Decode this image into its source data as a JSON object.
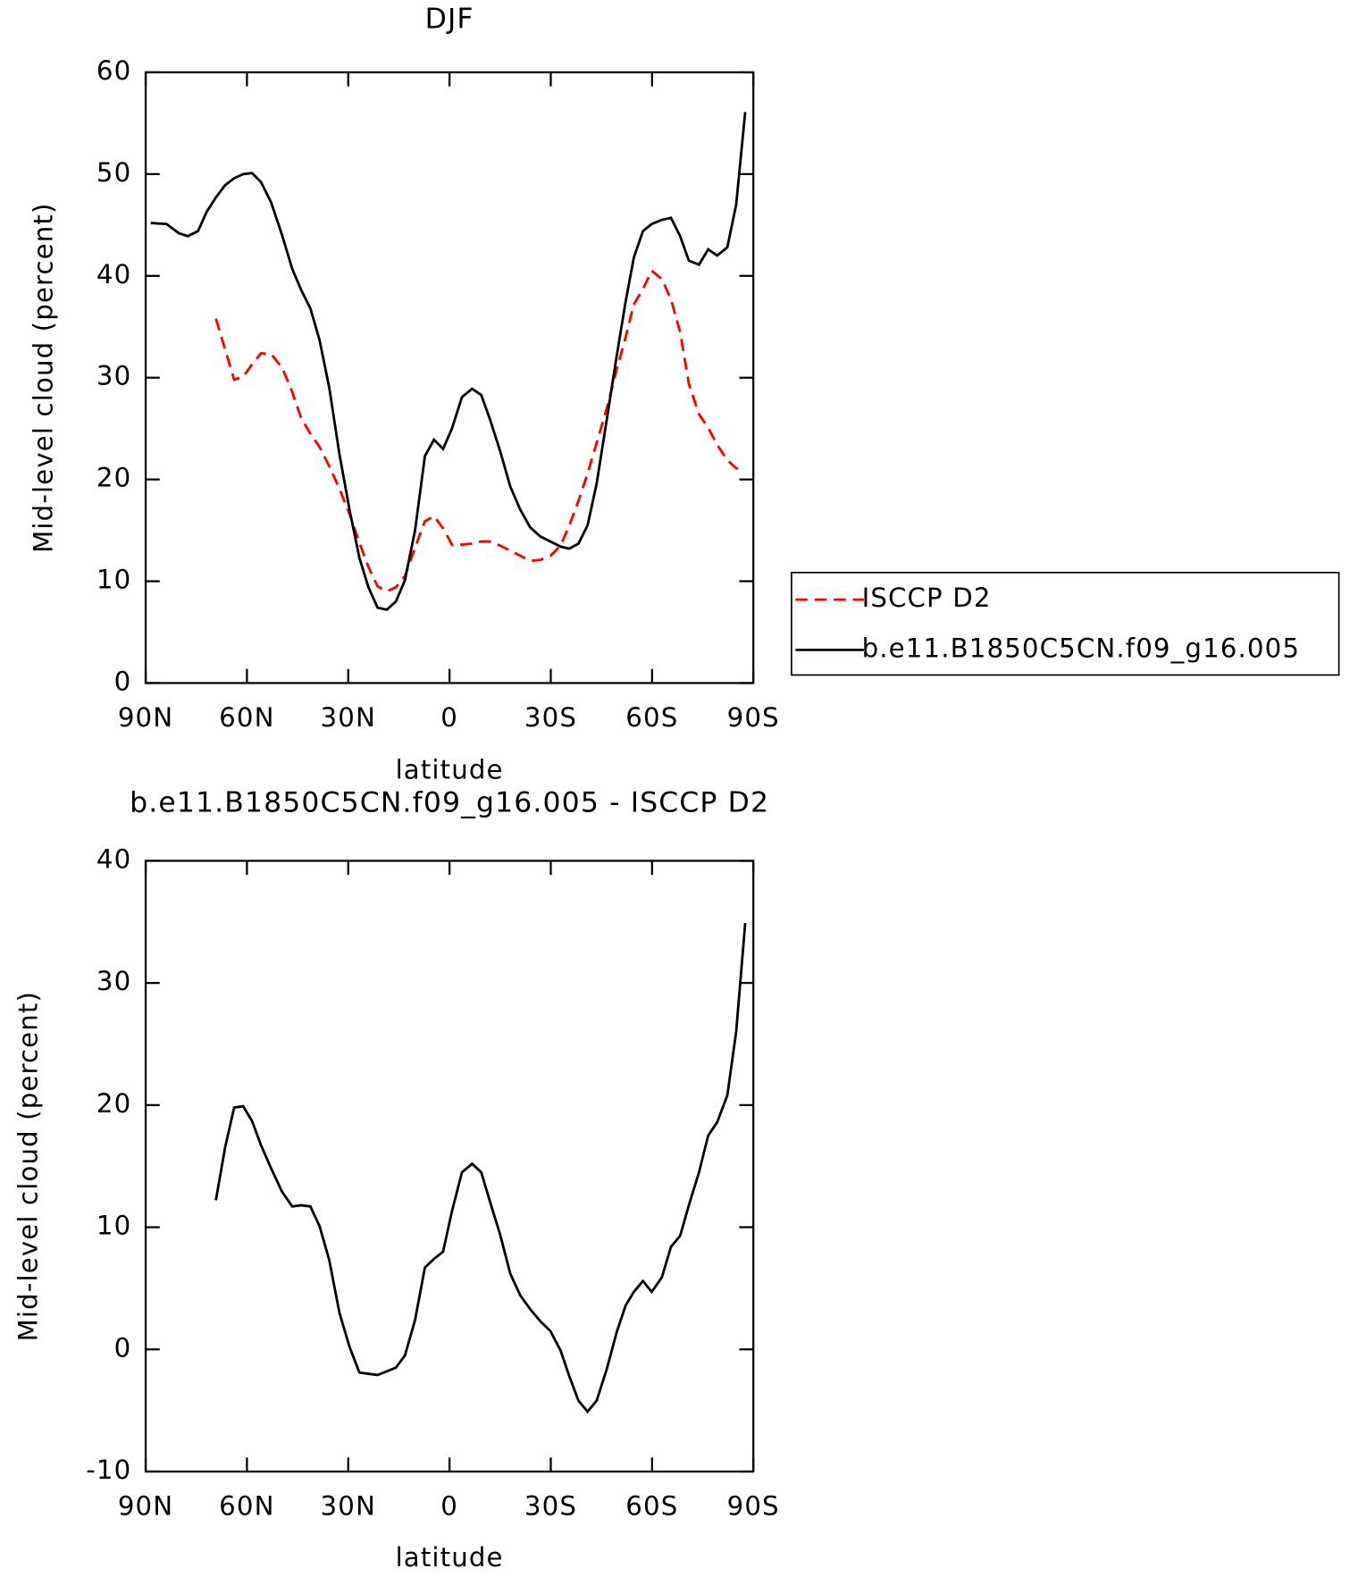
{
  "chart_data": [
    {
      "type": "line",
      "title": "DJF",
      "xlabel": "latitude",
      "ylabel": "Mid-level cloud (percent)",
      "x": [
        88.5,
        83.8,
        80.2,
        77.5,
        74.5,
        71.9,
        69.2,
        66.5,
        63.8,
        61.1,
        58.5,
        55.8,
        52.8,
        49.6,
        46.6,
        43.9,
        41.2,
        38.5,
        35.6,
        32.6,
        29.6,
        26.7,
        24.0,
        21.3,
        18.6,
        15.9,
        13.2,
        10.2,
        7.3,
        4.6,
        1.9,
        -0.7,
        -3.7,
        -6.7,
        -9.4,
        -12.0,
        -15.0,
        -18.0,
        -21.0,
        -23.9,
        -26.9,
        -29.9,
        -32.9,
        -35.5,
        -38.2,
        -40.9,
        -43.6,
        -46.6,
        -49.5,
        -52.2,
        -54.6,
        -57.3,
        -59.9,
        -62.9,
        -65.6,
        -68.3,
        -70.9,
        -73.9,
        -76.6,
        -79.3,
        -82.3,
        -84.9,
        -87.6
      ],
      "series": [
        {
          "name": "ISCCP D2",
          "color": "#ff0000",
          "dash": "dashed",
          "values": [
            null,
            null,
            null,
            null,
            null,
            null,
            35.8,
            32.8,
            29.8,
            30.1,
            31.3,
            32.4,
            32.3,
            31,
            28.6,
            26,
            24.5,
            23.2,
            21.3,
            19.1,
            16.6,
            13.8,
            11.4,
            9.5,
            9,
            9.4,
            10.5,
            13.3,
            15.9,
            16.4,
            15.2,
            13.6,
            13.6,
            13.7,
            13.9,
            13.9,
            13.5,
            13,
            12.5,
            12,
            12.1,
            12.5,
            13.5,
            15.5,
            17.9,
            20.6,
            23.6,
            27,
            30.8,
            34,
            37.2,
            38.7,
            40.5,
            39.7,
            37.7,
            34.5,
            29.4,
            26.4,
            25.1,
            23.4,
            21.9,
            21.1,
            21.1
          ]
        },
        {
          "name": "b.e11.B1850C5CN.f09_g16.005",
          "color": "#000000",
          "dash": "solid",
          "values": [
            45.2,
            45.1,
            44.2,
            43.9,
            44.4,
            46.3,
            47.7,
            48.9,
            49.6,
            50.0,
            50.1,
            49.2,
            47.2,
            44,
            40.7,
            38.6,
            36.8,
            33.7,
            29,
            22.5,
            17,
            12.3,
            9.4,
            7.4,
            7.2,
            8,
            10.1,
            15,
            22.3,
            23.9,
            23,
            25,
            28.1,
            28.9,
            28.3,
            25.9,
            22.8,
            19.3,
            17,
            15.3,
            14.4,
            13.9,
            13.4,
            13.2,
            13.7,
            15.5,
            19.6,
            25.9,
            32.1,
            37.5,
            41.8,
            44.4,
            45.1,
            45.5,
            45.7,
            43.9,
            41.5,
            41.1,
            42.6,
            42,
            42.8,
            47,
            56.1
          ]
        }
      ],
      "xlim": [
        90,
        -90
      ],
      "xticks": [
        {
          "value": 90,
          "label": "90N"
        },
        {
          "value": 60,
          "label": "60N"
        },
        {
          "value": 30,
          "label": "30N"
        },
        0,
        {
          "value": -30,
          "label": "30S"
        },
        {
          "value": -60,
          "label": "60S"
        },
        {
          "value": -90,
          "label": "90S"
        }
      ],
      "ylim": [
        0,
        60
      ],
      "yticks": [
        0,
        10,
        20,
        30,
        40,
        50,
        60
      ],
      "legend": "right"
    },
    {
      "type": "line",
      "title": "b.e11.B1850C5CN.f09_g16.005 - ISCCP D2",
      "xlabel": "latitude",
      "ylabel": "Mid-level cloud (percent)",
      "x": [
        88.5,
        83.8,
        80.2,
        77.5,
        74.5,
        71.9,
        69.2,
        66.5,
        63.8,
        61.1,
        58.5,
        55.8,
        52.8,
        49.6,
        46.6,
        43.9,
        41.2,
        38.5,
        35.6,
        32.6,
        29.6,
        26.7,
        24.0,
        21.3,
        18.6,
        15.9,
        13.2,
        10.2,
        7.3,
        4.6,
        1.9,
        -0.7,
        -3.7,
        -6.7,
        -9.4,
        -12.0,
        -15.0,
        -18.0,
        -21.0,
        -23.9,
        -26.9,
        -29.9,
        -32.9,
        -35.5,
        -38.2,
        -40.9,
        -43.6,
        -46.6,
        -49.5,
        -52.2,
        -54.6,
        -57.3,
        -59.9,
        -62.9,
        -65.6,
        -68.3,
        -70.9,
        -73.9,
        -76.6,
        -79.3,
        -82.3,
        -84.9,
        -87.6
      ],
      "series": [
        {
          "color": "#000000",
          "dash": "solid",
          "values": [
            null,
            null,
            null,
            null,
            null,
            null,
            12.2,
            16.5,
            19.8,
            19.9,
            18.7,
            16.7,
            14.8,
            12.9,
            11.7,
            11.8,
            11.7,
            10.1,
            7.3,
            3,
            0.2,
            -1.9,
            -2,
            -2.1,
            -1.8,
            -1.5,
            -0.5,
            2.4,
            6.7,
            7.4,
            8,
            11.3,
            14.5,
            15.2,
            14.5,
            12.1,
            9.4,
            6.2,
            4.4,
            3.3,
            2.3,
            1.5,
            -0.1,
            -2.2,
            -4.2,
            -5.1,
            -4.2,
            -1.6,
            1.4,
            3.6,
            4.7,
            5.6,
            4.7,
            5.9,
            8.4,
            9.3,
            11.8,
            14.5,
            17.5,
            18.6,
            20.8,
            26,
            34.9
          ]
        }
      ],
      "xlim": [
        90,
        -90
      ],
      "xticks": [
        {
          "value": 90,
          "label": "90N"
        },
        {
          "value": 60,
          "label": "60N"
        },
        {
          "value": 30,
          "label": "30N"
        },
        0,
        {
          "value": -30,
          "label": "30S"
        },
        {
          "value": -60,
          "label": "60S"
        },
        {
          "value": -90,
          "label": "90S"
        }
      ],
      "ylim": [
        -10,
        40
      ],
      "yticks": [
        -10,
        0,
        10,
        20,
        30,
        40
      ]
    }
  ]
}
